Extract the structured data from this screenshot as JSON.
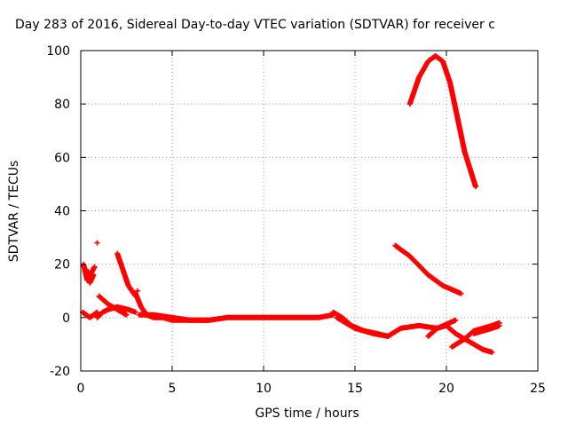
{
  "chart_data": {
    "type": "scatter",
    "title": "Day 283 of 2016, Sidereal Day-to-day VTEC variation (SDTVAR) for receiver c",
    "xlabel": "GPS time / hours",
    "ylabel": "SDTVAR / TECUs",
    "xlim": [
      0,
      25
    ],
    "ylim": [
      -20,
      100
    ],
    "xticks": [
      0,
      5,
      10,
      15,
      20,
      25
    ],
    "yticks": [
      -20,
      0,
      20,
      40,
      60,
      80,
      100
    ],
    "grid": true,
    "marker": "+",
    "colors": {
      "series": "#ff0000",
      "grid": "#a0a0a0",
      "axes": "#000000"
    },
    "tracks": [
      {
        "x": [
          0.15,
          0.35,
          0.6,
          0.75
        ],
        "y": [
          20,
          14,
          17,
          19
        ]
      },
      {
        "x": [
          0.3,
          0.5,
          0.7
        ],
        "y": [
          18,
          13,
          16
        ]
      },
      {
        "x": [
          0.1,
          0.3,
          0.5,
          0.7,
          0.9
        ],
        "y": [
          2,
          1,
          0,
          1,
          2
        ]
      },
      {
        "x": [
          0.9,
          1.2,
          1.5,
          2.0,
          2.6,
          3.0
        ],
        "y": [
          0,
          2,
          3,
          4,
          3,
          2
        ]
      },
      {
        "x": [
          1.0,
          1.5,
          2.0,
          2.5
        ],
        "y": [
          8,
          5,
          3,
          1
        ]
      },
      {
        "x": [
          2.0,
          2.3,
          2.6,
          3.0
        ],
        "y": [
          24,
          18,
          12,
          8
        ]
      },
      {
        "x": [
          3.0,
          3.3,
          3.6,
          4.0,
          4.5,
          5.0,
          6.0,
          7.0,
          8.0,
          9.0,
          10.0,
          11.0,
          12.0,
          13.0,
          13.8
        ],
        "y": [
          9,
          4,
          1,
          0,
          0,
          -1,
          -1,
          -1,
          0,
          0,
          0,
          0,
          0,
          0,
          1
        ]
      },
      {
        "x": [
          3.2,
          4.0,
          5.0,
          6.0,
          7.0
        ],
        "y": [
          1,
          1,
          0,
          -1,
          -1
        ]
      },
      {
        "x": [
          13.8,
          14.3,
          14.8,
          15.5,
          16.2,
          16.8
        ],
        "y": [
          2,
          0,
          -3,
          -5,
          -6,
          -7
        ]
      },
      {
        "x": [
          14.0,
          15.0,
          16.0,
          16.8
        ],
        "y": [
          0,
          -4,
          -6,
          -7
        ]
      },
      {
        "x": [
          16.8,
          17.5,
          18.5,
          19.5,
          20.5
        ],
        "y": [
          -7,
          -4,
          -3,
          -4,
          -1
        ]
      },
      {
        "x": [
          17.2,
          18.0,
          19.0,
          19.8,
          20.8
        ],
        "y": [
          27,
          23,
          16,
          12,
          9
        ]
      },
      {
        "x": [
          18.0,
          18.5,
          19.0,
          19.4,
          19.8,
          20.2,
          20.6,
          21.0,
          21.6
        ],
        "y": [
          80,
          90,
          96,
          98,
          96,
          88,
          75,
          62,
          49
        ]
      },
      {
        "x": [
          19.0,
          19.5,
          20.0,
          20.5,
          21.0,
          21.5,
          22.0,
          22.5
        ],
        "y": [
          -7,
          -4,
          -3,
          -6,
          -8,
          -10,
          -12,
          -13
        ]
      },
      {
        "x": [
          20.3,
          21.0,
          21.5,
          22.0,
          22.5,
          22.9
        ],
        "y": [
          -11,
          -8,
          -5,
          -4,
          -3,
          -2
        ]
      },
      {
        "x": [
          21.5,
          22.0,
          22.5,
          22.9
        ],
        "y": [
          -6,
          -5,
          -4,
          -3
        ]
      }
    ],
    "isolated_points": [
      {
        "x": 0.9,
        "y": 28
      },
      {
        "x": 3.1,
        "y": 10
      }
    ]
  }
}
